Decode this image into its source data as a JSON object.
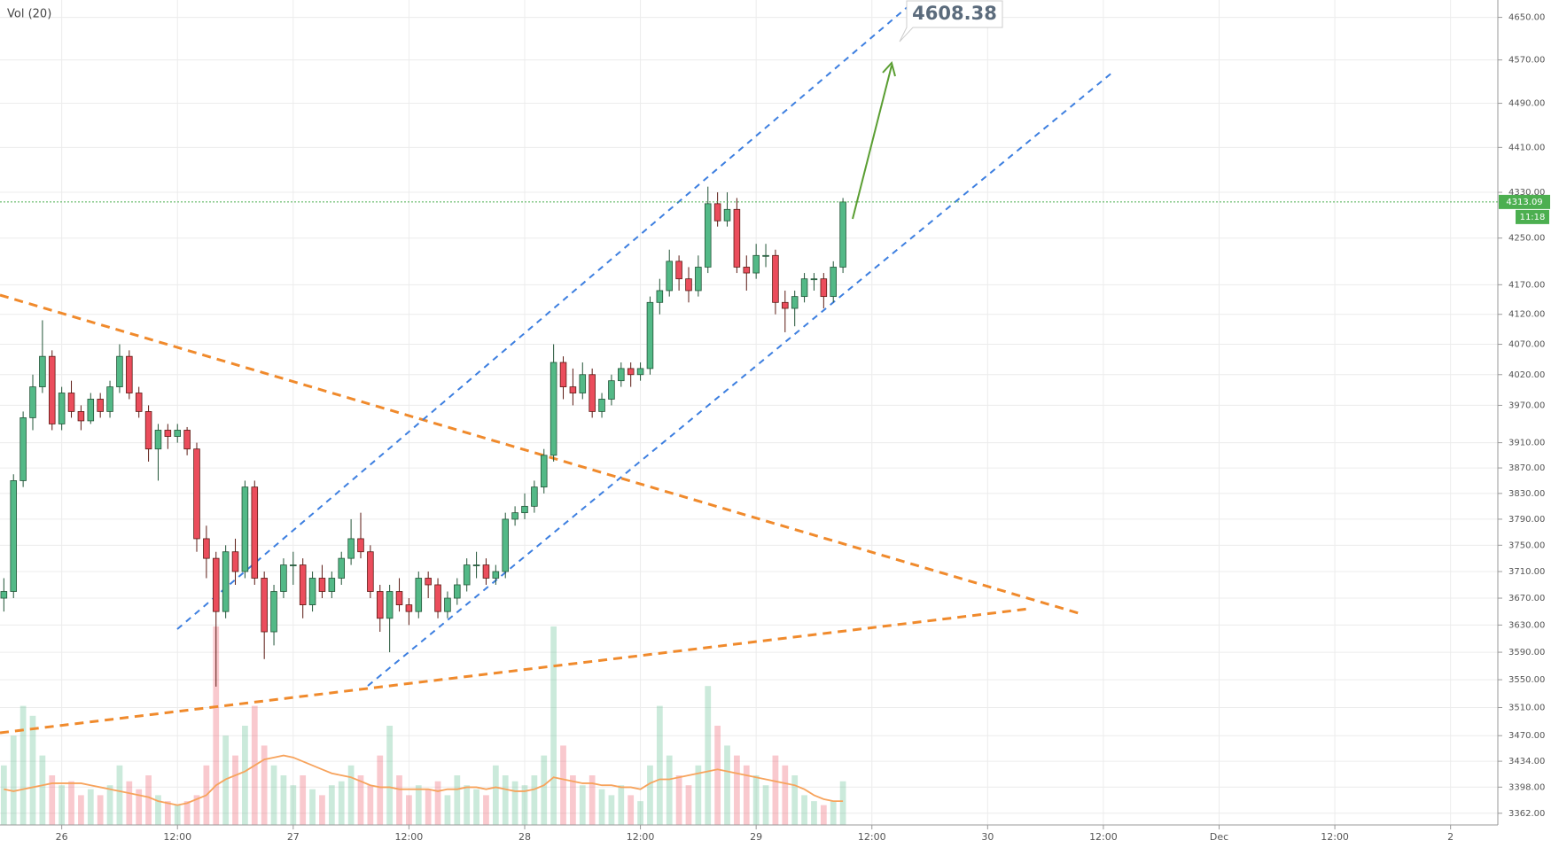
{
  "chart_data": {
    "type": "candlestick",
    "indicator_label": "Vol (20)",
    "log_scale": true,
    "grid": true,
    "xlim": [
      -6.4,
      148.9
    ],
    "xticks": [
      {
        "value": 0,
        "label": "26"
      },
      {
        "value": 12,
        "label": "12:00"
      },
      {
        "value": 24,
        "label": "27"
      },
      {
        "value": 36,
        "label": "12:00"
      },
      {
        "value": 48,
        "label": "28"
      },
      {
        "value": 60,
        "label": "12:00"
      },
      {
        "value": 72,
        "label": "29"
      },
      {
        "value": 84,
        "label": "12:00"
      },
      {
        "value": 96,
        "label": "30"
      },
      {
        "value": 108,
        "label": "12:00"
      },
      {
        "value": 120,
        "label": "Dec"
      },
      {
        "value": 132,
        "label": "12:00"
      },
      {
        "value": 144,
        "label": "2"
      }
    ],
    "ylim": [
      3346,
      4683
    ],
    "yticks": [
      {
        "value": 4650,
        "label": "4650.00"
      },
      {
        "value": 4570,
        "label": "4570.00"
      },
      {
        "value": 4490,
        "label": "4490.00"
      },
      {
        "value": 4410,
        "label": "4410.00"
      },
      {
        "value": 4330,
        "label": "4330.00"
      },
      {
        "value": 4250,
        "label": "4250.00"
      },
      {
        "value": 4170,
        "label": "4170.00"
      },
      {
        "value": 4120,
        "label": "4120.00"
      },
      {
        "value": 4070,
        "label": "4070.00"
      },
      {
        "value": 4020,
        "label": "4020.00"
      },
      {
        "value": 3970,
        "label": "3970.00"
      },
      {
        "value": 3910,
        "label": "3910.00"
      },
      {
        "value": 3870,
        "label": "3870.00"
      },
      {
        "value": 3830,
        "label": "3830.00"
      },
      {
        "value": 3790,
        "label": "3790.00"
      },
      {
        "value": 3750,
        "label": "3750.00"
      },
      {
        "value": 3710,
        "label": "3710.00"
      },
      {
        "value": 3670,
        "label": "3670.00"
      },
      {
        "value": 3630,
        "label": "3630.00"
      },
      {
        "value": 3590,
        "label": "3590.00"
      },
      {
        "value": 3550,
        "label": "3550.00"
      },
      {
        "value": 3510,
        "label": "3510.00"
      },
      {
        "value": 3470,
        "label": "3470.00"
      },
      {
        "value": 3434,
        "label": "3434.00"
      },
      {
        "value": 3398,
        "label": "3398.00"
      },
      {
        "value": 3362,
        "label": "3362.00"
      }
    ],
    "up_color": "#53b987",
    "down_color": "#eb4d5c",
    "x": [
      -6,
      -5,
      -4,
      -3,
      -2,
      -1,
      0,
      1,
      2,
      3,
      4,
      5,
      6,
      7,
      8,
      9,
      10,
      11,
      12,
      13,
      14,
      15,
      16,
      17,
      18,
      19,
      20,
      21,
      22,
      23,
      24,
      25,
      26,
      27,
      28,
      29,
      30,
      31,
      32,
      33,
      34,
      35,
      36,
      37,
      38,
      39,
      40,
      41,
      42,
      43,
      44,
      45,
      46,
      47,
      48,
      49,
      50,
      51,
      52,
      53,
      54,
      55,
      56,
      57,
      58,
      59,
      60,
      61,
      62,
      63,
      64,
      65,
      66,
      67,
      68,
      69,
      70,
      71,
      72,
      73,
      74,
      75,
      76,
      77,
      78,
      79,
      80,
      81
    ],
    "candles": [
      [
        3670,
        3700,
        3650,
        3680
      ],
      [
        3680,
        3860,
        3670,
        3850
      ],
      [
        3850,
        3960,
        3840,
        3950
      ],
      [
        3950,
        4020,
        3930,
        4000
      ],
      [
        4000,
        4110,
        3990,
        4050
      ],
      [
        4050,
        4060,
        3930,
        3940
      ],
      [
        3940,
        4000,
        3930,
        3990
      ],
      [
        3990,
        4010,
        3950,
        3960
      ],
      [
        3960,
        3970,
        3930,
        3945
      ],
      [
        3945,
        3990,
        3940,
        3980
      ],
      [
        3980,
        3990,
        3950,
        3960
      ],
      [
        3960,
        4010,
        3950,
        4000
      ],
      [
        4000,
        4070,
        3990,
        4050
      ],
      [
        4050,
        4060,
        3980,
        3990
      ],
      [
        3990,
        4000,
        3950,
        3960
      ],
      [
        3960,
        3970,
        3880,
        3900
      ],
      [
        3900,
        3940,
        3850,
        3930
      ],
      [
        3930,
        3940,
        3900,
        3920
      ],
      [
        3920,
        3940,
        3910,
        3930
      ],
      [
        3930,
        3935,
        3890,
        3900
      ],
      [
        3900,
        3910,
        3740,
        3760
      ],
      [
        3760,
        3780,
        3700,
        3730
      ],
      [
        3730,
        3740,
        3540,
        3650
      ],
      [
        3650,
        3750,
        3640,
        3740
      ],
      [
        3740,
        3760,
        3690,
        3710
      ],
      [
        3710,
        3850,
        3700,
        3840
      ],
      [
        3840,
        3850,
        3690,
        3700
      ],
      [
        3700,
        3710,
        3580,
        3620
      ],
      [
        3620,
        3690,
        3600,
        3680
      ],
      [
        3680,
        3730,
        3670,
        3720
      ],
      [
        3720,
        3740,
        3690,
        3720
      ],
      [
        3720,
        3730,
        3640,
        3660
      ],
      [
        3660,
        3710,
        3650,
        3700
      ],
      [
        3700,
        3720,
        3670,
        3680
      ],
      [
        3680,
        3710,
        3670,
        3700
      ],
      [
        3700,
        3740,
        3690,
        3730
      ],
      [
        3730,
        3790,
        3720,
        3760
      ],
      [
        3760,
        3800,
        3730,
        3740
      ],
      [
        3740,
        3750,
        3670,
        3680
      ],
      [
        3680,
        3690,
        3620,
        3640
      ],
      [
        3640,
        3690,
        3590,
        3680
      ],
      [
        3680,
        3700,
        3650,
        3660
      ],
      [
        3660,
        3670,
        3630,
        3650
      ],
      [
        3650,
        3710,
        3640,
        3700
      ],
      [
        3700,
        3710,
        3670,
        3690
      ],
      [
        3690,
        3700,
        3640,
        3650
      ],
      [
        3650,
        3680,
        3640,
        3670
      ],
      [
        3670,
        3700,
        3660,
        3690
      ],
      [
        3690,
        3730,
        3680,
        3720
      ],
      [
        3720,
        3740,
        3700,
        3720
      ],
      [
        3720,
        3730,
        3690,
        3700
      ],
      [
        3700,
        3720,
        3690,
        3710
      ],
      [
        3710,
        3800,
        3700,
        3790
      ],
      [
        3790,
        3810,
        3780,
        3800
      ],
      [
        3800,
        3830,
        3790,
        3810
      ],
      [
        3810,
        3850,
        3800,
        3840
      ],
      [
        3840,
        3900,
        3830,
        3890
      ],
      [
        3890,
        4070,
        3880,
        4040
      ],
      [
        4040,
        4050,
        3980,
        4000
      ],
      [
        4000,
        4030,
        3970,
        3990
      ],
      [
        3990,
        4040,
        3980,
        4020
      ],
      [
        4020,
        4030,
        3950,
        3960
      ],
      [
        3960,
        3990,
        3950,
        3980
      ],
      [
        3980,
        4020,
        3970,
        4010
      ],
      [
        4010,
        4040,
        4000,
        4030
      ],
      [
        4030,
        4040,
        4000,
        4020
      ],
      [
        4020,
        4040,
        4010,
        4030
      ],
      [
        4030,
        4150,
        4020,
        4140
      ],
      [
        4140,
        4180,
        4120,
        4160
      ],
      [
        4160,
        4230,
        4150,
        4210
      ],
      [
        4210,
        4220,
        4160,
        4180
      ],
      [
        4180,
        4200,
        4140,
        4160
      ],
      [
        4160,
        4220,
        4150,
        4200
      ],
      [
        4200,
        4340,
        4190,
        4310
      ],
      [
        4310,
        4330,
        4270,
        4280
      ],
      [
        4280,
        4330,
        4270,
        4300
      ],
      [
        4300,
        4320,
        4190,
        4200
      ],
      [
        4200,
        4220,
        4160,
        4190
      ],
      [
        4190,
        4240,
        4180,
        4220
      ],
      [
        4220,
        4240,
        4200,
        4220
      ],
      [
        4220,
        4230,
        4120,
        4140
      ],
      [
        4140,
        4160,
        4090,
        4130
      ],
      [
        4130,
        4160,
        4100,
        4150
      ],
      [
        4150,
        4190,
        4140,
        4180
      ],
      [
        4180,
        4190,
        4160,
        4180
      ],
      [
        4180,
        4190,
        4130,
        4150
      ],
      [
        4150,
        4210,
        4140,
        4200
      ],
      [
        4200,
        4320,
        4190,
        4313.09
      ]
    ],
    "volume": {
      "vol_ylim": [
        0,
        100
      ],
      "values": [
        30,
        45,
        60,
        55,
        35,
        25,
        20,
        22,
        15,
        18,
        15,
        20,
        30,
        22,
        18,
        25,
        15,
        12,
        10,
        12,
        15,
        30,
        100,
        45,
        35,
        50,
        60,
        40,
        30,
        25,
        20,
        25,
        18,
        15,
        20,
        22,
        30,
        25,
        20,
        35,
        50,
        25,
        15,
        20,
        18,
        22,
        15,
        25,
        20,
        18,
        15,
        30,
        25,
        22,
        20,
        25,
        35,
        100,
        40,
        25,
        20,
        25,
        18,
        15,
        20,
        15,
        12,
        30,
        60,
        35,
        25,
        20,
        30,
        70,
        50,
        40,
        35,
        30,
        25,
        20,
        35,
        30,
        25,
        15,
        12,
        10,
        12,
        22
      ],
      "ma": [
        18,
        17,
        18,
        19,
        20,
        21,
        21,
        21,
        21,
        20,
        19,
        18,
        17,
        16,
        15,
        14,
        12,
        11,
        10,
        11,
        13,
        15,
        20,
        23,
        25,
        27,
        30,
        33,
        34,
        35,
        34,
        32,
        30,
        28,
        26,
        25,
        24,
        22,
        20,
        19,
        19,
        18,
        18,
        18,
        18,
        17,
        18,
        18,
        19,
        19,
        18,
        19,
        18,
        17,
        17,
        18,
        20,
        24,
        23,
        22,
        21,
        21,
        20,
        20,
        19,
        19,
        18,
        21,
        23,
        23,
        24,
        25,
        26,
        27,
        28,
        27,
        26,
        25,
        24,
        23,
        22,
        21,
        20,
        18,
        15,
        13,
        12,
        12
      ],
      "ma_color": "#f7a35c"
    },
    "last_price": {
      "value": 4313.09,
      "countdown": "11:18",
      "color": "#4caf50"
    },
    "annotation": {
      "value": 4608.38
    }
  }
}
